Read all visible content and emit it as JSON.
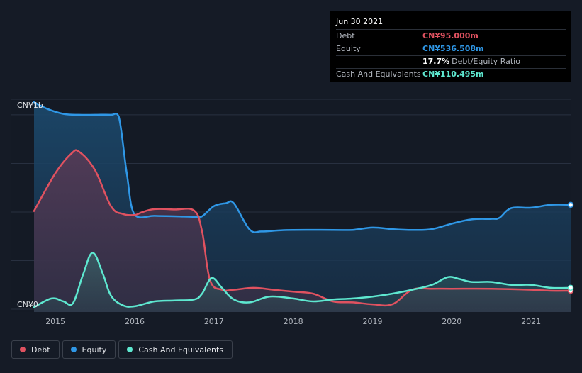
{
  "tooltip": {
    "date": "Jun 30 2021",
    "debt_label": "Debt",
    "debt_value": "CN¥95.000m",
    "equity_label": "Equity",
    "equity_value": "CN¥536.508m",
    "ratio_value": "17.7%",
    "ratio_label": "Debt/Equity Ratio",
    "cash_label": "Cash And Equivalents",
    "cash_value": "CN¥110.495m"
  },
  "legend": {
    "debt": "Debt",
    "equity": "Equity",
    "cash": "Cash And Equivalents"
  },
  "colors": {
    "debt": "#e05260",
    "equity": "#2f97e6",
    "cash": "#5ee8d0",
    "background": "#151b26"
  },
  "chart_data": {
    "type": "area",
    "title": "",
    "xlabel": "",
    "ylabel": "",
    "ylim": [
      0,
      1080
    ],
    "y_tick_labels": [
      {
        "value": 1000,
        "label": "CN¥1b"
      },
      {
        "value": 0,
        "label": "CN¥0"
      }
    ],
    "x_ticks": [
      2015,
      2016,
      2017,
      2018,
      2019,
      2020,
      2021
    ],
    "xlim": [
      2014.73,
      2021.5
    ],
    "series": [
      {
        "name": "Debt",
        "key": "debt",
        "x": [
          2014.73,
          2015.0,
          2015.2,
          2015.3,
          2015.5,
          2015.7,
          2015.85,
          2016.0,
          2016.1,
          2016.25,
          2016.5,
          2016.75,
          2016.85,
          2016.95,
          2017.1,
          2017.25,
          2017.5,
          2017.75,
          2018.0,
          2018.25,
          2018.5,
          2018.75,
          2019.0,
          2019.25,
          2019.5,
          2019.75,
          2020.0,
          2020.5,
          2021.0,
          2021.25,
          2021.5
        ],
        "values": [
          505,
          700,
          800,
          810,
          715,
          530,
          490,
          485,
          500,
          515,
          513,
          507,
          400,
          150,
          100,
          100,
          110,
          100,
          90,
          80,
          40,
          35,
          25,
          25,
          100,
          105,
          105,
          105,
          100,
          95,
          95
        ]
      },
      {
        "name": "Equity",
        "key": "equity",
        "x": [
          2014.73,
          2014.9,
          2015.1,
          2015.3,
          2015.5,
          2015.7,
          2015.8,
          2015.9,
          2016.0,
          2016.25,
          2016.5,
          2016.75,
          2016.85,
          2017.0,
          2017.15,
          2017.25,
          2017.45,
          2017.6,
          2017.8,
          2018.0,
          2018.5,
          2018.75,
          2019.0,
          2019.25,
          2019.5,
          2019.75,
          2020.0,
          2020.25,
          2020.5,
          2020.6,
          2020.75,
          2021.0,
          2021.25,
          2021.5
        ],
        "values": [
          1065,
          1030,
          1005,
          1000,
          1000,
          1000,
          990,
          700,
          485,
          480,
          478,
          475,
          478,
          530,
          545,
          545,
          410,
          400,
          405,
          408,
          408,
          408,
          420,
          412,
          408,
          412,
          440,
          462,
          465,
          470,
          520,
          522,
          537,
          537
        ]
      },
      {
        "name": "Cash And Equivalents",
        "key": "cash",
        "x": [
          2014.73,
          2014.95,
          2015.1,
          2015.22,
          2015.35,
          2015.47,
          2015.6,
          2015.7,
          2015.85,
          2016.0,
          2016.25,
          2016.5,
          2016.75,
          2016.85,
          2016.97,
          2017.1,
          2017.25,
          2017.45,
          2017.7,
          2018.0,
          2018.25,
          2018.5,
          2018.75,
          2019.0,
          2019.25,
          2019.5,
          2019.75,
          2019.95,
          2020.1,
          2020.25,
          2020.5,
          2020.75,
          2021.0,
          2021.25,
          2021.5
        ],
        "values": [
          10,
          55,
          40,
          30,
          180,
          290,
          180,
          70,
          20,
          15,
          40,
          45,
          50,
          80,
          160,
          110,
          50,
          35,
          65,
          55,
          40,
          50,
          55,
          65,
          80,
          100,
          125,
          165,
          155,
          140,
          140,
          125,
          125,
          110,
          110
        ]
      }
    ]
  }
}
